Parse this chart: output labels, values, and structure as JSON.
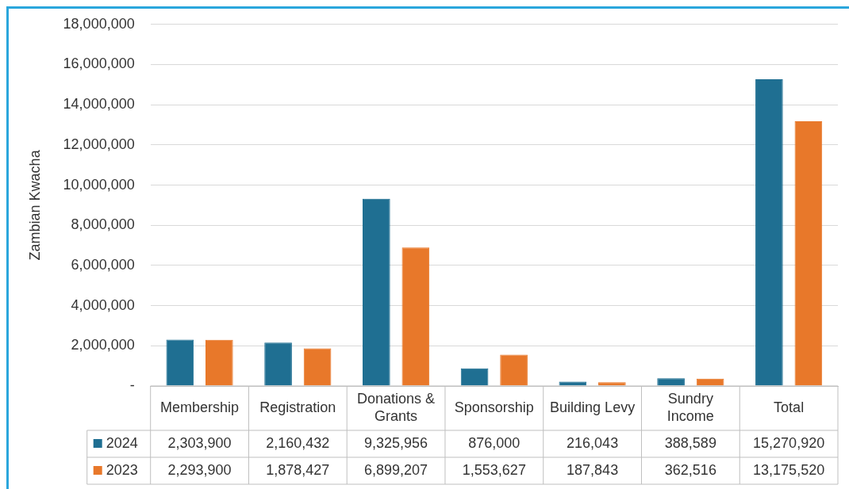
{
  "chart_data": {
    "type": "bar",
    "ylabel": "Zambian Kwacha",
    "categories": [
      "Membership",
      "Registration",
      "Donations & Grants",
      "Sponsorship",
      "Building Levy",
      "Sundry Income",
      "Total"
    ],
    "series": [
      {
        "name": "2024",
        "color": "#1f6f92",
        "values": [
          2303900,
          2160432,
          9325956,
          876000,
          216043,
          388589,
          15270920
        ],
        "value_labels": [
          "2,303,900",
          "2,160,432",
          "9,325,956",
          "876,000",
          "216,043",
          "388,589",
          "15,270,920"
        ]
      },
      {
        "name": "2023",
        "color": "#e8782a",
        "values": [
          2293900,
          1878427,
          6899207,
          1553627,
          187843,
          362516,
          13175520
        ],
        "value_labels": [
          "2,293,900",
          "1,878,427",
          "6,899,207",
          "1,553,627",
          "187,843",
          "362,516",
          "13,175,520"
        ]
      }
    ],
    "ylim": [
      0,
      18000000
    ],
    "yticks": [
      {
        "value": 0,
        "label": "-"
      },
      {
        "value": 2000000,
        "label": "2,000,000"
      },
      {
        "value": 4000000,
        "label": "4,000,000"
      },
      {
        "value": 6000000,
        "label": "6,000,000"
      },
      {
        "value": 8000000,
        "label": "8,000,000"
      },
      {
        "value": 10000000,
        "label": "10,000,000"
      },
      {
        "value": 12000000,
        "label": "12,000,000"
      },
      {
        "value": 14000000,
        "label": "14,000,000"
      },
      {
        "value": 16000000,
        "label": "16,000,000"
      },
      {
        "value": 18000000,
        "label": "18,000,000"
      }
    ],
    "grid": "y",
    "legend": "bottom"
  }
}
